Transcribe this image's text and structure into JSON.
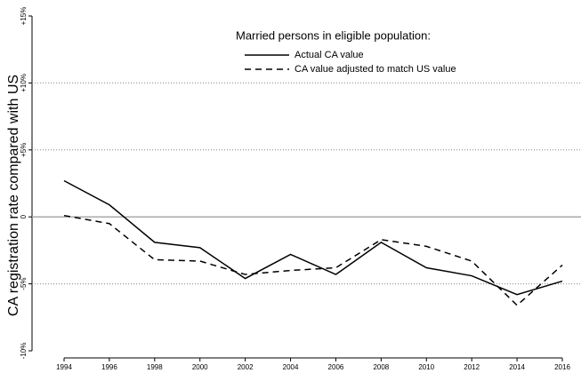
{
  "chart_data": {
    "type": "line",
    "y_label": "CA registration rate compared with US",
    "legend_title": "Married persons in eligible population:",
    "x": [
      1994,
      1996,
      1998,
      2000,
      2002,
      2004,
      2006,
      2008,
      2010,
      2012,
      2014,
      2016
    ],
    "xlim": [
      1994,
      2016
    ],
    "xticks": [
      1994,
      1996,
      1998,
      2000,
      2002,
      2004,
      2006,
      2008,
      2010,
      2012,
      2014,
      2016
    ],
    "ylim": [
      -10,
      15
    ],
    "yticks": [
      {
        "value": -10,
        "label": "-10%"
      },
      {
        "value": -5,
        "label": "-5%"
      },
      0,
      {
        "value": 5,
        "label": "+5%"
      },
      {
        "value": 10,
        "label": "+10%"
      },
      {
        "value": 15,
        "label": "+15%"
      }
    ],
    "grid": true,
    "series": [
      {
        "name": "Actual CA value",
        "color": "#000000",
        "dash": "solid",
        "values": [
          2.7,
          0.9,
          -1.9,
          -2.3,
          -4.6,
          -2.8,
          -4.3,
          -1.9,
          -3.8,
          -4.4,
          -5.8,
          -4.8
        ]
      },
      {
        "name": "CA value adjusted to match US value",
        "color": "#000000",
        "dash": "dashed",
        "values": [
          0.1,
          -0.5,
          -3.2,
          -3.3,
          -4.3,
          -4.0,
          -3.8,
          -1.7,
          -2.2,
          -3.3,
          -6.6,
          -3.6
        ]
      }
    ]
  }
}
